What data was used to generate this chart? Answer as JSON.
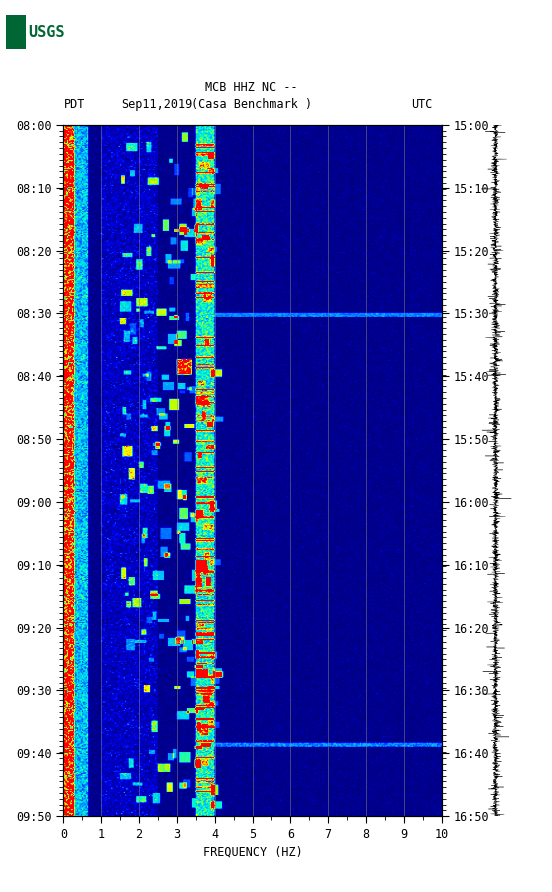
{
  "title_line1": "MCB HHZ NC --",
  "title_line2": "(Casa Benchmark )",
  "left_label": "PDT",
  "date_label": "Sep11,2019",
  "right_label": "UTC",
  "freq_label": "FREQUENCY (HZ)",
  "freq_min": 0,
  "freq_max": 10,
  "ytick_pdt": [
    "08:00",
    "08:10",
    "08:20",
    "08:30",
    "08:40",
    "08:50",
    "09:00",
    "09:10",
    "09:20",
    "09:30",
    "09:40",
    "09:50"
  ],
  "ytick_utc": [
    "15:00",
    "15:10",
    "15:20",
    "15:30",
    "15:40",
    "15:50",
    "16:00",
    "16:10",
    "16:20",
    "16:30",
    "16:40",
    "16:50"
  ],
  "xticks": [
    0,
    1,
    2,
    3,
    4,
    5,
    6,
    7,
    8,
    9,
    10
  ],
  "background_color": "#ffffff",
  "usgs_color": "#006633",
  "vertical_lines_freq": [
    1.0,
    2.0,
    3.0,
    4.0,
    5.0,
    6.0,
    7.0,
    8.0,
    9.0
  ],
  "fig_width": 5.52,
  "fig_height": 8.92,
  "cmap_colors": [
    [
      0.0,
      "#000080"
    ],
    [
      0.15,
      "#0000FF"
    ],
    [
      0.3,
      "#0055FF"
    ],
    [
      0.45,
      "#00BBFF"
    ],
    [
      0.6,
      "#00FFCC"
    ],
    [
      0.72,
      "#AAFF00"
    ],
    [
      0.82,
      "#FFFF00"
    ],
    [
      0.91,
      "#FF8800"
    ],
    [
      1.0,
      "#FF0000"
    ]
  ]
}
